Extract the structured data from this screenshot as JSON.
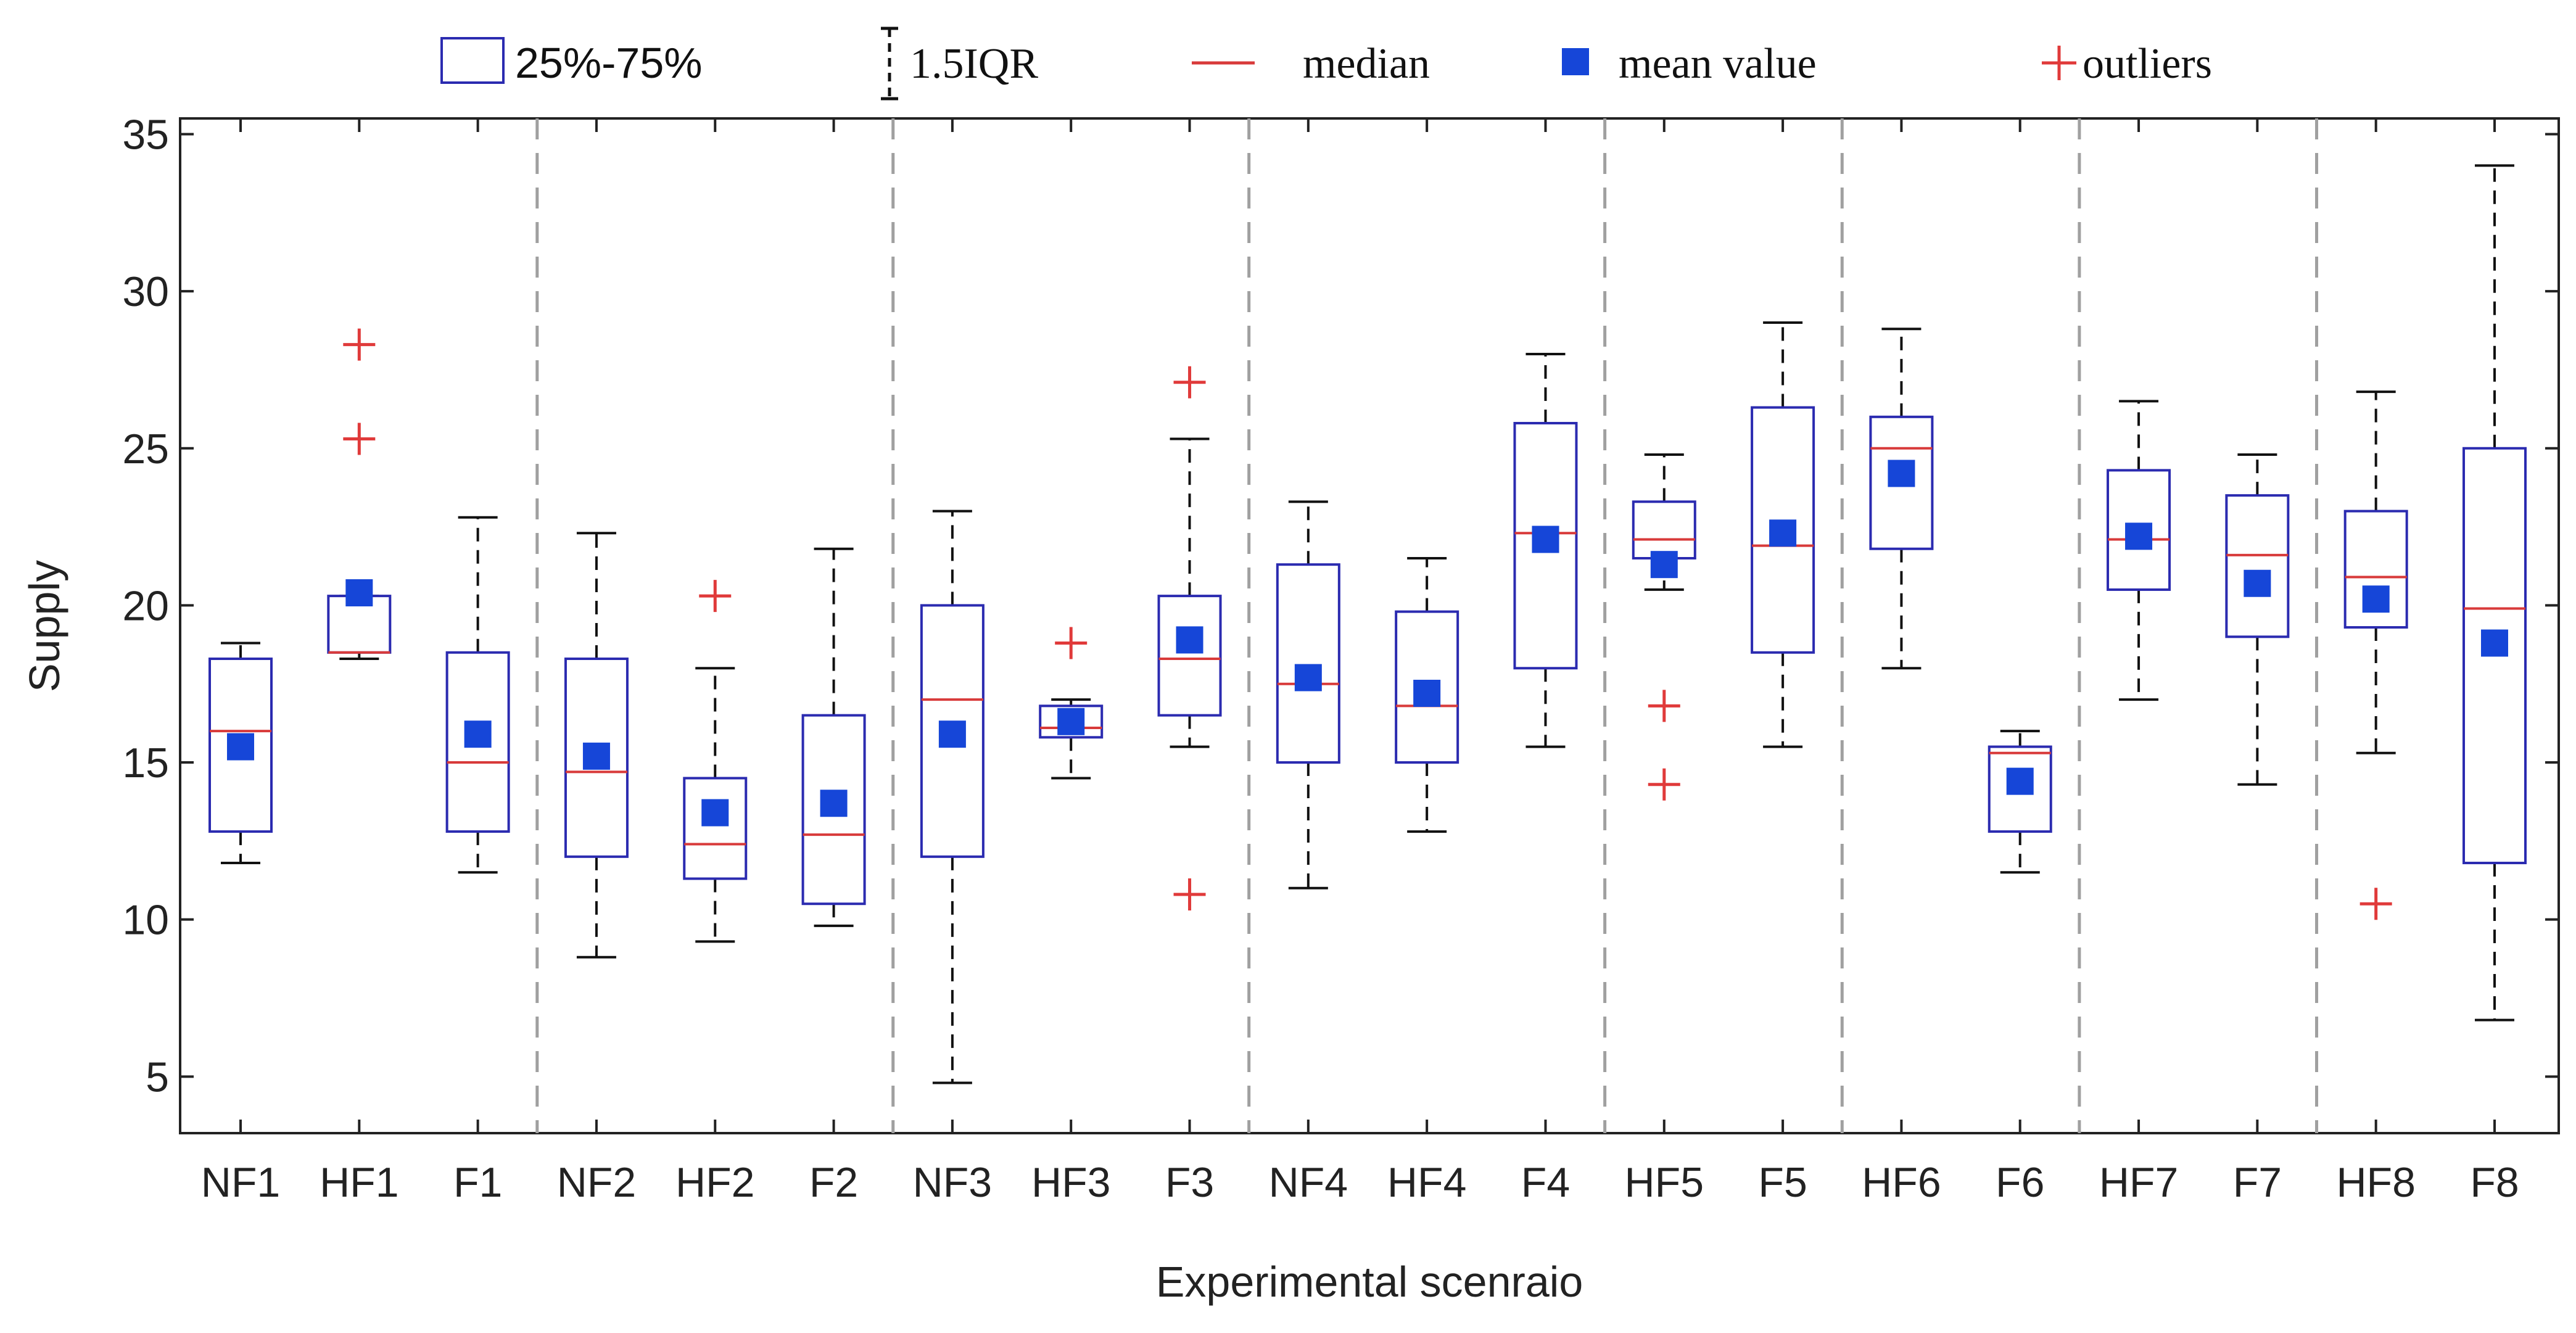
{
  "chart_data": {
    "type": "boxplot",
    "xlabel": "Experimental scenraio",
    "ylabel": "Supply",
    "ylim": [
      3.2,
      35.5
    ],
    "yticks": [
      5,
      10,
      15,
      20,
      25,
      30,
      35
    ],
    "group_separators_after": [
      3,
      6,
      9,
      12,
      14,
      16,
      18
    ],
    "legend": {
      "box": "25%-75%",
      "whisker": "1.5IQR",
      "median": "median",
      "mean": "mean value",
      "outliers": "outliers"
    },
    "colors": {
      "box": "#2b2bb0",
      "median": "#d83a3a",
      "mean": "#1646d8",
      "outlier": "#e03a3a",
      "whisker": "#111111",
      "separator": "#a0a0a0"
    },
    "boxes": [
      {
        "label": "NF1",
        "q1": 12.8,
        "q3": 18.3,
        "median": 16.0,
        "mean": 15.5,
        "wlo": 11.8,
        "whi": 18.8,
        "outliers": []
      },
      {
        "label": "HF1",
        "q1": 18.5,
        "q3": 20.3,
        "median": 18.5,
        "mean": 20.4,
        "wlo": 18.3,
        "whi": 20.3,
        "outliers": [
          28.3,
          25.3
        ]
      },
      {
        "label": "F1",
        "q1": 12.8,
        "q3": 18.5,
        "median": 15.0,
        "mean": 15.9,
        "wlo": 11.5,
        "whi": 22.8,
        "outliers": []
      },
      {
        "label": "NF2",
        "q1": 12.0,
        "q3": 18.3,
        "median": 14.7,
        "mean": 15.2,
        "wlo": 8.8,
        "whi": 22.3,
        "outliers": []
      },
      {
        "label": "HF2",
        "q1": 11.3,
        "q3": 14.5,
        "median": 12.4,
        "mean": 13.4,
        "wlo": 9.3,
        "whi": 18.0,
        "outliers": [
          20.3
        ]
      },
      {
        "label": "F2",
        "q1": 10.5,
        "q3": 16.5,
        "median": 12.7,
        "mean": 13.7,
        "wlo": 9.8,
        "whi": 21.8,
        "outliers": []
      },
      {
        "label": "NF3",
        "q1": 12.0,
        "q3": 20.0,
        "median": 17.0,
        "mean": 15.9,
        "wlo": 4.8,
        "whi": 23.0,
        "outliers": []
      },
      {
        "label": "HF3",
        "q1": 15.8,
        "q3": 16.8,
        "median": 16.1,
        "mean": 16.3,
        "wlo": 14.5,
        "whi": 17.0,
        "outliers": [
          18.8
        ]
      },
      {
        "label": "F3",
        "q1": 16.5,
        "q3": 20.3,
        "median": 18.3,
        "mean": 18.9,
        "wlo": 15.5,
        "whi": 25.3,
        "outliers": [
          27.1,
          10.8
        ]
      },
      {
        "label": "NF4",
        "q1": 15.0,
        "q3": 21.3,
        "median": 17.5,
        "mean": 17.7,
        "wlo": 11.0,
        "whi": 23.3,
        "outliers": []
      },
      {
        "label": "HF4",
        "q1": 15.0,
        "q3": 19.8,
        "median": 16.8,
        "mean": 17.2,
        "wlo": 12.8,
        "whi": 21.5,
        "outliers": []
      },
      {
        "label": "F4",
        "q1": 18.0,
        "q3": 25.8,
        "median": 22.3,
        "mean": 22.1,
        "wlo": 15.5,
        "whi": 28.0,
        "outliers": []
      },
      {
        "label": "HF5",
        "q1": 21.5,
        "q3": 23.3,
        "median": 22.1,
        "mean": 21.3,
        "wlo": 20.5,
        "whi": 24.8,
        "outliers": [
          16.8,
          14.3
        ]
      },
      {
        "label": "F5",
        "q1": 18.5,
        "q3": 26.3,
        "median": 21.9,
        "mean": 22.3,
        "wlo": 15.5,
        "whi": 29.0,
        "outliers": []
      },
      {
        "label": "HF6",
        "q1": 21.8,
        "q3": 26.0,
        "median": 25.0,
        "mean": 24.2,
        "wlo": 18.0,
        "whi": 28.8,
        "outliers": []
      },
      {
        "label": "F6",
        "q1": 12.8,
        "q3": 15.5,
        "median": 15.3,
        "mean": 14.4,
        "wlo": 11.5,
        "whi": 16.0,
        "outliers": []
      },
      {
        "label": "HF7",
        "q1": 20.5,
        "q3": 24.3,
        "median": 22.1,
        "mean": 22.2,
        "wlo": 17.0,
        "whi": 26.5,
        "outliers": []
      },
      {
        "label": "F7",
        "q1": 19.0,
        "q3": 23.5,
        "median": 21.6,
        "mean": 20.7,
        "wlo": 14.3,
        "whi": 24.8,
        "outliers": []
      },
      {
        "label": "HF8",
        "q1": 19.3,
        "q3": 23.0,
        "median": 20.9,
        "mean": 20.2,
        "wlo": 15.3,
        "whi": 26.8,
        "outliers": [
          10.5
        ]
      },
      {
        "label": "F8",
        "q1": 11.8,
        "q3": 25.0,
        "median": 19.9,
        "mean": 18.8,
        "wlo": 6.8,
        "whi": 34.0,
        "outliers": []
      }
    ]
  }
}
